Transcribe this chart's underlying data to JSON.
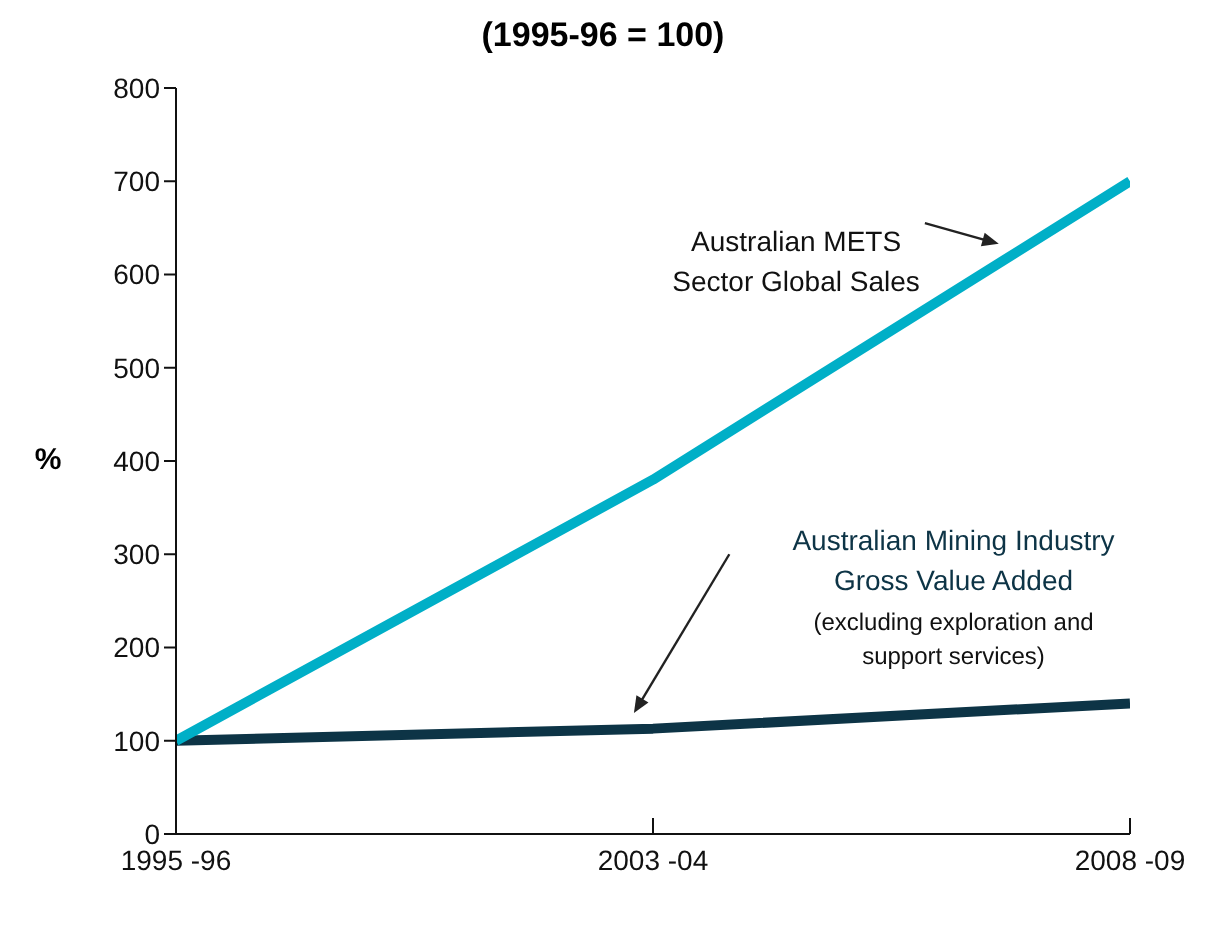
{
  "chart_data": {
    "type": "line",
    "title": "(1995-96 = 100)",
    "ylabel": "%",
    "categories": [
      "1995 -96",
      "2003 -04",
      "2008 -09"
    ],
    "series": [
      {
        "name": "Australian Mining Industry Gross Value Added",
        "color": "#0d3446",
        "values": [
          100,
          113,
          140
        ]
      },
      {
        "name": "Australian METS Sector Global Sales",
        "color": "#00afc7",
        "values": [
          100,
          380,
          700
        ]
      }
    ],
    "annotations": [
      "(excluding exploration and support services)"
    ],
    "ylim": [
      0,
      800
    ],
    "yticks": [
      0,
      100,
      200,
      300,
      400,
      500,
      600,
      700,
      800
    ],
    "grid": false,
    "legend": false,
    "marker": "none",
    "line_style": "solid"
  }
}
